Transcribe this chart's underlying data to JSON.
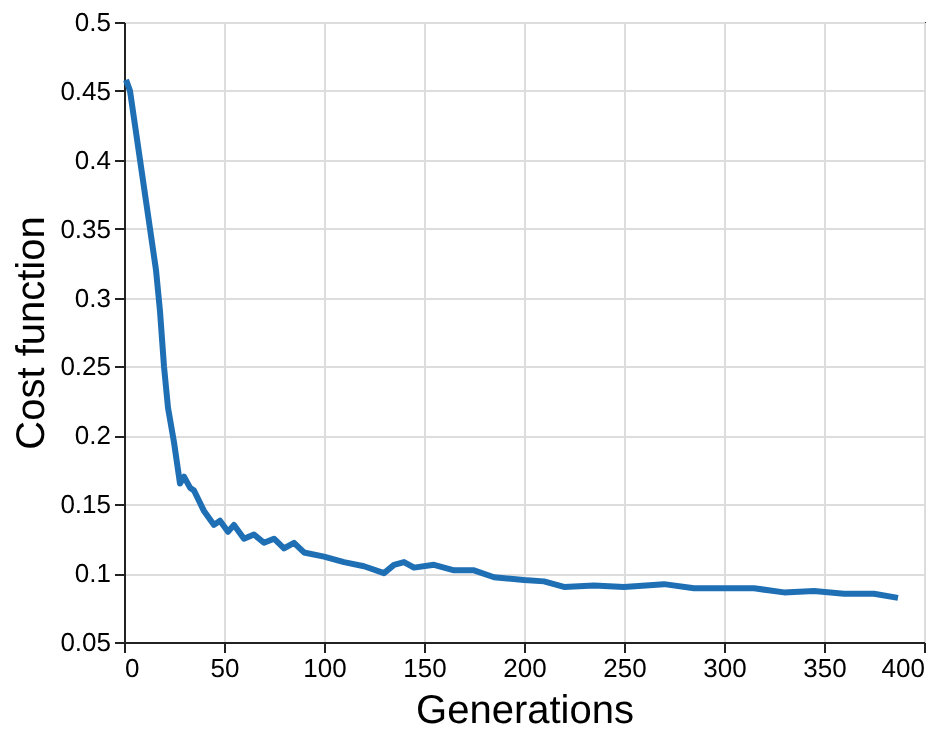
{
  "chart_data": {
    "type": "line",
    "xlabel": "Generations",
    "ylabel": "Cost function",
    "x": [
      1,
      3,
      5,
      7,
      10,
      13,
      16,
      18,
      20,
      22,
      25,
      28,
      30,
      33,
      35,
      40,
      45,
      48,
      52,
      55,
      60,
      65,
      70,
      75,
      80,
      85,
      90,
      100,
      110,
      120,
      130,
      135,
      140,
      145,
      155,
      165,
      175,
      185,
      200,
      210,
      220,
      235,
      250,
      270,
      285,
      300,
      315,
      330,
      345,
      360,
      375,
      387
    ],
    "series": [
      {
        "color": "#1f6fb5",
        "values": [
          0.458,
          0.45,
          0.43,
          0.41,
          0.38,
          0.35,
          0.32,
          0.29,
          0.25,
          0.22,
          0.195,
          0.165,
          0.17,
          0.162,
          0.16,
          0.145,
          0.135,
          0.138,
          0.13,
          0.135,
          0.125,
          0.128,
          0.122,
          0.125,
          0.118,
          0.122,
          0.115,
          0.112,
          0.108,
          0.105,
          0.1,
          0.106,
          0.108,
          0.104,
          0.106,
          0.102,
          0.102,
          0.097,
          0.095,
          0.094,
          0.09,
          0.091,
          0.09,
          0.092,
          0.089,
          0.089,
          0.089,
          0.086,
          0.087,
          0.085,
          0.085,
          0.082
        ]
      }
    ],
    "xlim": [
      0,
      400
    ],
    "xticks": [
      0,
      50,
      100,
      150,
      200,
      250,
      300,
      350,
      400
    ],
    "ylim": [
      0.05,
      0.5
    ],
    "yticks": [
      0.05,
      0.1,
      0.15,
      0.2,
      0.25,
      0.3,
      0.35,
      0.4,
      0.45,
      0.5
    ],
    "grid": true,
    "line_style": "solid"
  }
}
